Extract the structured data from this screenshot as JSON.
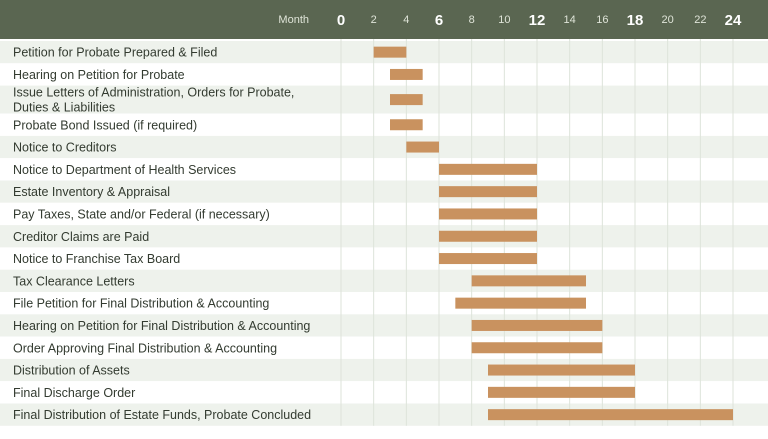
{
  "chart_data": {
    "type": "gantt",
    "axis_label": "Month",
    "ticks": [
      {
        "value": 0,
        "label": "0",
        "major": true
      },
      {
        "value": 2,
        "label": "2",
        "major": false
      },
      {
        "value": 4,
        "label": "4",
        "major": false
      },
      {
        "value": 6,
        "label": "6",
        "major": true
      },
      {
        "value": 8,
        "label": "8",
        "major": false
      },
      {
        "value": 10,
        "label": "10",
        "major": false
      },
      {
        "value": 12,
        "label": "12",
        "major": true
      },
      {
        "value": 14,
        "label": "14",
        "major": false
      },
      {
        "value": 16,
        "label": "16",
        "major": false
      },
      {
        "value": 18,
        "label": "18",
        "major": true
      },
      {
        "value": 20,
        "label": "20",
        "major": false
      },
      {
        "value": 22,
        "label": "22",
        "major": false
      },
      {
        "value": 24,
        "label": "24",
        "major": true
      }
    ],
    "xlim": [
      0,
      24
    ],
    "grid": true,
    "colors": {
      "bar": "#c9925f",
      "header": "#5a6651",
      "row_alt": "#eef2ec"
    },
    "tasks": [
      {
        "label": [
          "Petition for Probate Prepared & Filed"
        ],
        "start": 2.0,
        "end": 4.0
      },
      {
        "label": [
          "Hearing on Petition for Probate"
        ],
        "start": 3.0,
        "end": 5.0
      },
      {
        "label": [
          "Issue Letters of Administration, Orders for Probate,",
          "Duties & Liabilities"
        ],
        "start": 3.0,
        "end": 5.0
      },
      {
        "label": [
          "Probate Bond Issued (if required)"
        ],
        "start": 3.0,
        "end": 5.0
      },
      {
        "label": [
          "Notice to Creditors"
        ],
        "start": 4.0,
        "end": 6.0
      },
      {
        "label": [
          "Notice to Department of Health Services"
        ],
        "start": 6.0,
        "end": 12.0
      },
      {
        "label": [
          "Estate Inventory & Appraisal"
        ],
        "start": 6.0,
        "end": 12.0
      },
      {
        "label": [
          "Pay Taxes, State and/or Federal (if necessary)"
        ],
        "start": 6.0,
        "end": 12.0
      },
      {
        "label": [
          "Creditor Claims are Paid"
        ],
        "start": 6.0,
        "end": 12.0
      },
      {
        "label": [
          "Notice to Franchise Tax Board"
        ],
        "start": 6.0,
        "end": 12.0
      },
      {
        "label": [
          "Tax Clearance Letters"
        ],
        "start": 8.0,
        "end": 15.0
      },
      {
        "label": [
          "File Petition for Final Distribution & Accounting"
        ],
        "start": 7.0,
        "end": 15.0
      },
      {
        "label": [
          "Hearing on Petition for Final Distribution & Accounting"
        ],
        "start": 8.0,
        "end": 16.0
      },
      {
        "label": [
          "Order Approving Final Distribution & Accounting"
        ],
        "start": 8.0,
        "end": 16.0
      },
      {
        "label": [
          "Distribution of Assets"
        ],
        "start": 9.0,
        "end": 18.0
      },
      {
        "label": [
          "Final Discharge Order"
        ],
        "start": 9.0,
        "end": 18.0
      },
      {
        "label": [
          "Final Distribution of Estate Funds, Probate Concluded"
        ],
        "start": 9.0,
        "end": 24.0
      }
    ]
  }
}
